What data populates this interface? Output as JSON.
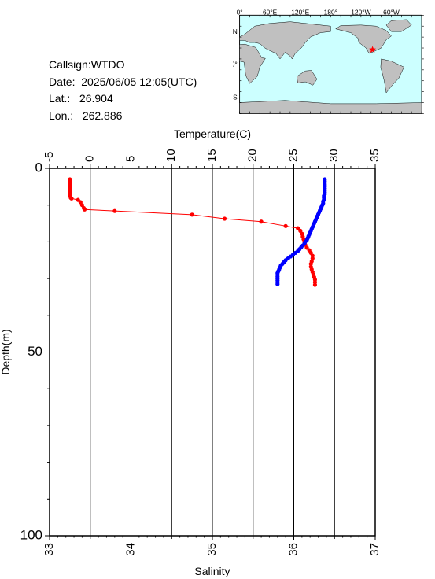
{
  "info": {
    "callsign_label": "Callsign:",
    "callsign": "WTDO",
    "date_label": "Date:",
    "date": "2025/06/05 12:05(UTC)",
    "lat_label": "Lat.:",
    "lat": "26.904",
    "lon_label": "Lon.:",
    "lon": "262.886"
  },
  "map": {
    "top_labels": [
      "0°",
      "60°E",
      "120°E",
      "180°",
      "120°W",
      "60°W"
    ],
    "left_labels": [
      "60°N",
      "0°",
      "60°S"
    ],
    "ocean_color": "#ccffff",
    "land_color": "#c0c0c0",
    "marker_color": "#ff0000",
    "marker_lat": 26.904,
    "marker_lon": 262.886
  },
  "chart_data": {
    "type": "scatter",
    "top_axis": {
      "label": "Temperature(C)",
      "ticks": [
        "-5",
        "0",
        "5",
        "10",
        "15",
        "20",
        "25",
        "30",
        "35"
      ],
      "range": [
        -5,
        35
      ]
    },
    "bottom_axis": {
      "label": "Salinity",
      "ticks": [
        "33",
        "34",
        "35",
        "36",
        "37"
      ],
      "range": [
        33,
        37
      ]
    },
    "left_axis": {
      "label": "Depth(m)",
      "ticks": [
        "0",
        "50",
        "100"
      ],
      "range": [
        0,
        100
      ],
      "inverted": true
    },
    "grid": true,
    "series": [
      {
        "axis": "top",
        "color": "#ff0000",
        "connected": true,
        "points": [
          [
            -2.5,
            3
          ],
          [
            -2.5,
            3.5
          ],
          [
            -2.5,
            4
          ],
          [
            -2.5,
            4.5
          ],
          [
            -2.5,
            5
          ],
          [
            -2.5,
            5.5
          ],
          [
            -2.5,
            6
          ],
          [
            -2.5,
            6.5
          ],
          [
            -2.5,
            7
          ],
          [
            -2.5,
            7.5
          ],
          [
            -2.4,
            8
          ],
          [
            -2.3,
            8.2
          ],
          [
            -1.5,
            8.6
          ],
          [
            -1.2,
            9.2
          ],
          [
            -1.0,
            10.0
          ],
          [
            -0.8,
            10.8
          ],
          [
            -0.7,
            11.2
          ],
          [
            3.0,
            11.6
          ],
          [
            12.5,
            12.6
          ],
          [
            16.5,
            13.7
          ],
          [
            21.0,
            14.5
          ],
          [
            24.0,
            15.7
          ],
          [
            25.5,
            16.3
          ],
          [
            25.8,
            17.0
          ],
          [
            26.0,
            17.8
          ],
          [
            26.1,
            18.6
          ],
          [
            26.2,
            19.3
          ],
          [
            26.3,
            20.0
          ],
          [
            26.4,
            20.8
          ],
          [
            26.6,
            21.6
          ],
          [
            26.9,
            22.3
          ],
          [
            27.1,
            23.0
          ],
          [
            27.3,
            23.8
          ],
          [
            27.3,
            24.5
          ],
          [
            27.2,
            25.3
          ],
          [
            27.1,
            26.0
          ],
          [
            27.1,
            26.8
          ],
          [
            27.2,
            27.5
          ],
          [
            27.3,
            28.2
          ],
          [
            27.4,
            28.9
          ],
          [
            27.5,
            29.6
          ],
          [
            27.6,
            30.3
          ],
          [
            27.6,
            31.0
          ],
          [
            27.6,
            31.7
          ]
        ]
      },
      {
        "axis": "bottom",
        "color": "#0000ff",
        "connected": false,
        "points": [
          [
            36.38,
            3
          ],
          [
            36.38,
            3.5
          ],
          [
            36.38,
            4
          ],
          [
            36.38,
            4.5
          ],
          [
            36.38,
            5
          ],
          [
            36.38,
            5.5
          ],
          [
            36.38,
            6
          ],
          [
            36.38,
            6.5
          ],
          [
            36.38,
            7
          ],
          [
            36.37,
            7.5
          ],
          [
            36.37,
            8
          ],
          [
            36.37,
            8.5
          ],
          [
            36.36,
            9
          ],
          [
            36.36,
            9.5
          ],
          [
            36.35,
            10
          ],
          [
            36.34,
            10.5
          ],
          [
            36.33,
            11
          ],
          [
            36.32,
            11.5
          ],
          [
            36.31,
            12
          ],
          [
            36.3,
            12.5
          ],
          [
            36.29,
            13
          ],
          [
            36.28,
            13.5
          ],
          [
            36.27,
            14
          ],
          [
            36.26,
            14.5
          ],
          [
            36.25,
            15
          ],
          [
            36.24,
            15.5
          ],
          [
            36.23,
            16
          ],
          [
            36.22,
            16.5
          ],
          [
            36.21,
            17
          ],
          [
            36.2,
            17.5
          ],
          [
            36.19,
            18
          ],
          [
            36.18,
            18.5
          ],
          [
            36.17,
            19
          ],
          [
            36.16,
            19.5
          ],
          [
            36.14,
            20
          ],
          [
            36.13,
            20.5
          ],
          [
            36.11,
            21
          ],
          [
            36.09,
            21.5
          ],
          [
            36.07,
            22
          ],
          [
            36.05,
            22.5
          ],
          [
            36.02,
            23
          ],
          [
            35.99,
            23.5
          ],
          [
            35.96,
            24
          ],
          [
            35.93,
            24.5
          ],
          [
            35.9,
            25
          ],
          [
            35.88,
            25.5
          ],
          [
            35.86,
            26
          ],
          [
            35.84,
            26.5
          ],
          [
            35.83,
            27
          ],
          [
            35.82,
            27.5
          ],
          [
            35.81,
            28
          ],
          [
            35.8,
            28.5
          ],
          [
            35.8,
            29
          ],
          [
            35.8,
            29.5
          ],
          [
            35.8,
            30
          ],
          [
            35.8,
            30.5
          ],
          [
            35.8,
            31
          ],
          [
            35.8,
            31.5
          ]
        ]
      }
    ]
  }
}
